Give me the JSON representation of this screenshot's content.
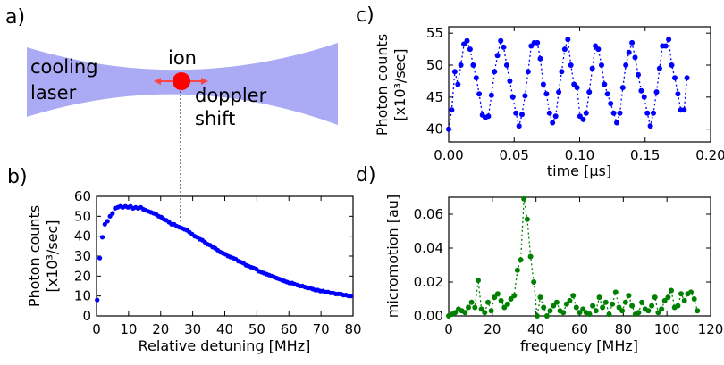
{
  "panels": {
    "a": {
      "letter": "a)",
      "labels": {
        "cooling": "cooling",
        "laser": "laser",
        "ion": "ion",
        "doppler": "doppler",
        "shift": "shift"
      },
      "colors": {
        "beam": "#aaaaf5",
        "ion": "#ff0000",
        "arrows": "#ff4444"
      }
    },
    "b": {
      "letter": "b)"
    },
    "c": {
      "letter": "c)"
    },
    "d": {
      "letter": "d)"
    }
  },
  "chart_data": [
    {
      "id": "b",
      "type": "scatter",
      "xlabel": "Relative detuning [MHz]",
      "ylabel_line1": "Photon counts",
      "ylabel_line2": "[x10³/sec]",
      "xlim": [
        0,
        80
      ],
      "ylim": [
        0,
        60
      ],
      "xticks": [
        0,
        10,
        20,
        30,
        40,
        50,
        60,
        70,
        80
      ],
      "yticks": [
        0,
        10,
        20,
        30,
        40,
        50,
        60
      ],
      "marker_color": "#0000ff",
      "series": [
        {
          "x": [
            0.2,
            1.0,
            1.8,
            2.6,
            3.4,
            4.2,
            5.0,
            5.8,
            6.6,
            7.4,
            8.2,
            9.0,
            9.8,
            10.6,
            11.4,
            12.2,
            13.0,
            13.8,
            14.6,
            15.4,
            16.2,
            17.0,
            17.8,
            18.6,
            19.4,
            20.2,
            21.0,
            21.8,
            22.6,
            23.4,
            24.2,
            25.0,
            25.8,
            26.6,
            27.4,
            28.2,
            29.0,
            29.8,
            30.6,
            31.4,
            32.2,
            33.0,
            33.8,
            34.6,
            35.4,
            36.2,
            37.0,
            37.8,
            38.6,
            39.4,
            40.2,
            41.0,
            41.8,
            42.6,
            43.4,
            44.2,
            45.0,
            45.8,
            46.6,
            47.4,
            48.2,
            49.0,
            49.8,
            50.6,
            51.4,
            52.2,
            53.0,
            53.8,
            54.6,
            55.4,
            56.2,
            57.0,
            57.8,
            58.6,
            59.4,
            60.2,
            61.0,
            61.8,
            62.6,
            63.4,
            64.2,
            65.0,
            65.8,
            66.6,
            67.4,
            68.2,
            69.0,
            69.8,
            70.6,
            71.4,
            72.2,
            73.0,
            73.8,
            74.6,
            75.4,
            76.2,
            77.0,
            77.8,
            78.6,
            79.4
          ],
          "y": [
            8.0,
            29.0,
            39.5,
            46.0,
            47.5,
            50.0,
            51.5,
            54.0,
            54.5,
            55.0,
            54.5,
            55.0,
            54.5,
            55.0,
            54.0,
            54.5,
            54.0,
            54.5,
            53.5,
            53.0,
            52.5,
            52.0,
            51.5,
            51.0,
            50.0,
            49.5,
            48.5,
            48.0,
            47.0,
            46.0,
            46.0,
            45.0,
            44.5,
            44.0,
            43.5,
            43.0,
            42.0,
            41.0,
            40.0,
            39.5,
            38.5,
            38.0,
            37.0,
            36.0,
            35.5,
            34.5,
            34.0,
            33.0,
            32.0,
            31.5,
            31.0,
            30.0,
            29.5,
            29.0,
            28.5,
            27.5,
            27.0,
            26.5,
            25.5,
            25.0,
            24.5,
            24.0,
            23.5,
            22.5,
            22.0,
            21.5,
            21.0,
            20.5,
            20.0,
            19.5,
            19.0,
            18.5,
            18.0,
            17.5,
            17.0,
            16.5,
            16.5,
            16.0,
            15.5,
            15.0,
            15.0,
            14.5,
            14.0,
            14.0,
            13.5,
            13.0,
            13.0,
            12.5,
            12.5,
            12.0,
            12.0,
            11.5,
            11.5,
            11.0,
            11.0,
            11.0,
            10.5,
            10.5,
            10.0,
            10.0
          ]
        }
      ]
    },
    {
      "id": "c",
      "type": "line",
      "xlabel": "time [µs]",
      "ylabel_line1": "Photon counts",
      "ylabel_line2": "[x10³/sec]",
      "xlim": [
        0,
        0.2
      ],
      "ylim": [
        38,
        56
      ],
      "xticks": [
        "0.00",
        "0.05",
        "0.10",
        "0.15",
        "0.20"
      ],
      "yticks": [
        40,
        45,
        50,
        55
      ],
      "marker_color": "#0000ff",
      "series": [
        {
          "x": [
            0.0,
            0.0023,
            0.0047,
            0.007,
            0.0093,
            0.0117,
            0.014,
            0.0163,
            0.0187,
            0.021,
            0.0233,
            0.0257,
            0.028,
            0.0303,
            0.0327,
            0.035,
            0.0373,
            0.0397,
            0.042,
            0.0443,
            0.0467,
            0.049,
            0.0513,
            0.0537,
            0.056,
            0.0583,
            0.0607,
            0.063,
            0.0653,
            0.0677,
            0.07,
            0.0723,
            0.0747,
            0.077,
            0.0793,
            0.0817,
            0.084,
            0.0863,
            0.0887,
            0.091,
            0.0933,
            0.0957,
            0.098,
            0.1003,
            0.1027,
            0.105,
            0.1073,
            0.1097,
            0.112,
            0.1143,
            0.1167,
            0.119,
            0.1213,
            0.1237,
            0.126,
            0.1283,
            0.1307,
            0.133,
            0.1353,
            0.1377,
            0.14,
            0.1423,
            0.1447,
            0.147,
            0.1493,
            0.1517,
            0.154,
            0.1563,
            0.1587,
            0.161,
            0.1633,
            0.1657,
            0.168,
            0.1703,
            0.1727,
            0.175,
            0.1773,
            0.1797,
            0.182
          ],
          "y": [
            40.0,
            43.0,
            49.0,
            47.0,
            50.0,
            53.3,
            53.8,
            52.5,
            50.0,
            48.0,
            45.5,
            42.2,
            41.8,
            42.0,
            45.3,
            49.0,
            51.5,
            53.8,
            52.8,
            50.0,
            47.5,
            45.0,
            42.5,
            40.5,
            42.3,
            45.2,
            49.0,
            53.0,
            53.5,
            53.5,
            51.0,
            47.0,
            45.5,
            42.5,
            41.0,
            42.0,
            45.8,
            49.0,
            52.5,
            54.0,
            50.0,
            47.0,
            46.5,
            42.0,
            41.5,
            42.5,
            45.8,
            49.5,
            53.0,
            52.5,
            50.0,
            47.0,
            45.5,
            44.0,
            42.5,
            41.0,
            42.5,
            46.5,
            50.0,
            52.0,
            53.5,
            51.2,
            48.5,
            46.0,
            45.0,
            42.5,
            40.5,
            42.5,
            45.8,
            49.5,
            53.0,
            53.0,
            54.0,
            50.0,
            48.0,
            45.5,
            43.0,
            43.0,
            48.0
          ]
        }
      ]
    },
    {
      "id": "d",
      "type": "line",
      "xlabel": "frequency [MHz]",
      "ylabel": "micromotion [au]",
      "xlim": [
        0,
        120
      ],
      "ylim": [
        0,
        0.07
      ],
      "xticks": [
        0,
        20,
        40,
        60,
        80,
        100,
        120
      ],
      "yticks": [
        "0.00",
        "0.02",
        "0.04",
        "0.06"
      ],
      "marker_color": "#008000",
      "series": [
        {
          "x": [
            0,
            1.5,
            3.0,
            4.5,
            6.0,
            7.5,
            9.0,
            10.5,
            12.0,
            13.5,
            15.0,
            16.5,
            18.0,
            19.5,
            21.0,
            22.5,
            24.0,
            25.5,
            27.0,
            28.5,
            30.0,
            31.5,
            33.0,
            34.5,
            36.0,
            37.5,
            39.0,
            40.5,
            42.0,
            43.5,
            45.0,
            46.5,
            48.0,
            49.5,
            51.0,
            52.5,
            54.0,
            55.5,
            57.0,
            58.5,
            60.0,
            61.5,
            63.0,
            64.5,
            66.0,
            67.5,
            69.0,
            70.5,
            72.0,
            73.5,
            75.0,
            76.5,
            78.0,
            79.5,
            81.0,
            82.5,
            84.0,
            85.5,
            87.0,
            88.5,
            90.0,
            91.5,
            93.0,
            94.5,
            96.0,
            97.5,
            99.0,
            100.5,
            102.0,
            103.5,
            105.0,
            106.5,
            108.0,
            109.5,
            111.0,
            112.5,
            114.0
          ],
          "y": [
            0.0,
            0.001,
            0.002,
            0.004,
            0.003,
            0.002,
            0.005,
            0.008,
            0.005,
            0.021,
            0.004,
            0.002,
            0.008,
            0.003,
            0.011,
            0.013,
            0.009,
            0.005,
            0.007,
            0.01,
            0.012,
            0.027,
            0.033,
            0.069,
            0.057,
            0.035,
            0.02,
            0.0,
            0.011,
            0.005,
            0.0,
            0.003,
            0.006,
            0.008,
            0.003,
            0.002,
            0.007,
            0.009,
            0.012,
            0.005,
            0.002,
            0.004,
            0.002,
            0.001,
            0.006,
            0.003,
            0.011,
            0.005,
            0.008,
            0.001,
            0.007,
            0.014,
            0.005,
            0.003,
            0.008,
            0.012,
            0.006,
            0.001,
            0.002,
            0.008,
            0.004,
            0.003,
            0.006,
            0.011,
            0.002,
            0.004,
            0.009,
            0.011,
            0.015,
            0.005,
            0.006,
            0.013,
            0.009,
            0.013,
            0.014,
            0.01,
            0.003
          ]
        }
      ]
    }
  ]
}
